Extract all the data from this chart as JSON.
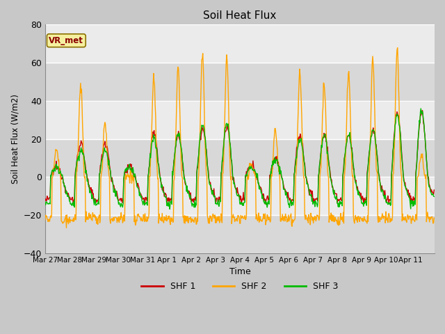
{
  "title": "Soil Heat Flux",
  "ylabel": "Soil Heat Flux (W/m2)",
  "xlabel": "Time",
  "legend_label": "VR_met",
  "series_labels": [
    "SHF 1",
    "SHF 2",
    "SHF 3"
  ],
  "series_colors": [
    "#cc0000",
    "#ffa500",
    "#00bb00"
  ],
  "ylim": [
    -40,
    80
  ],
  "yticks": [
    -40,
    -20,
    0,
    20,
    40,
    60,
    80
  ],
  "xlim": [
    0,
    16
  ],
  "tick_labels": [
    "Mar 27",
    "Mar 28",
    "Mar 29",
    "Mar 30",
    "Mar 31",
    "Apr 1",
    "Apr 2",
    "Apr 3",
    "Apr 4",
    "Apr 5",
    "Apr 6",
    "Apr 7",
    "Apr 8",
    "Apr 9",
    "Apr 10",
    "Apr 11"
  ],
  "band_color_light": "#ebebeb",
  "band_color_dark": "#d8d8d8",
  "fig_bg": "#c8c8c8",
  "vr_met_fg": "#8b0000",
  "vr_met_bg": "#f5f0a0",
  "vr_met_edge": "#8b7000"
}
